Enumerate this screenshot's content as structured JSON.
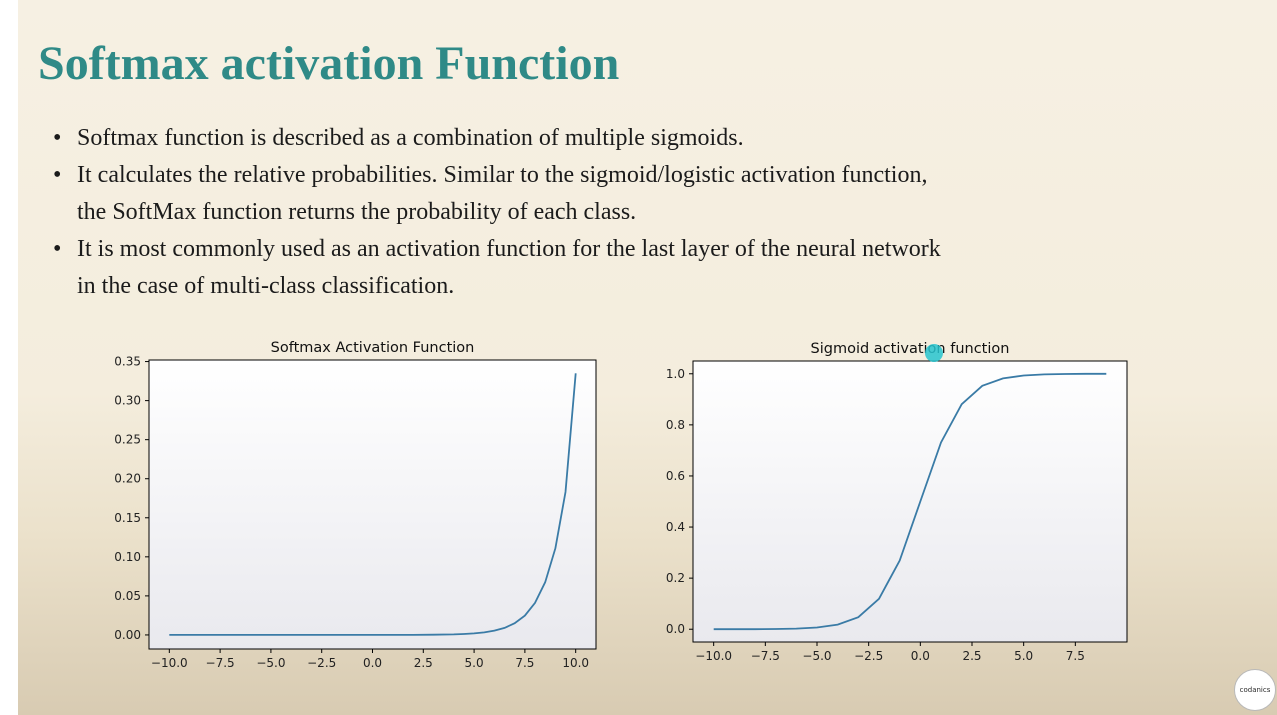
{
  "slide": {
    "title": "Softmax activation Function",
    "bullets": [
      "Softmax function is described as a combination of multiple sigmoids.",
      "It calculates the relative probabilities. Similar to the sigmoid/logistic activation function, the SoftMax function returns the probability of each class.",
      "It is most commonly used as an activation function for the last layer of the neural network in the case of multi-class classification."
    ],
    "title_color": "#2f8a87",
    "line_color": "#3a7ba6",
    "logo_text": "codanics"
  },
  "chart_data": [
    {
      "type": "line",
      "title": "Softmax Activation Function",
      "xlabel": "",
      "ylabel": "",
      "xlim": [
        -11.0,
        11.0
      ],
      "ylim": [
        -0.018,
        0.352
      ],
      "xticks": [
        -10.0,
        -7.5,
        -5.0,
        -2.5,
        0.0,
        2.5,
        5.0,
        7.5,
        10.0
      ],
      "xtick_labels": [
        "−10.0",
        "−7.5",
        "−5.0",
        "−2.5",
        "0.0",
        "2.5",
        "5.0",
        "7.5",
        "10.0"
      ],
      "yticks": [
        0.0,
        0.05,
        0.1,
        0.15,
        0.2,
        0.25,
        0.3,
        0.35
      ],
      "ytick_labels": [
        "0.00",
        "0.05",
        "0.10",
        "0.15",
        "0.20",
        "0.25",
        "0.30",
        "0.35"
      ],
      "grid": false,
      "series": [
        {
          "x": [
            -10,
            -9,
            -8,
            -7,
            -6,
            -5,
            -4,
            -3,
            -2,
            -1,
            0,
            1,
            2,
            3,
            4,
            4.5,
            5,
            5.5,
            6,
            6.5,
            7,
            7.5,
            8,
            8.5,
            9,
            9.5,
            10
          ],
          "y": [
            0,
            0,
            0,
            0,
            0,
            0,
            0,
            0,
            0,
            0,
            0,
            0,
            0,
            0.0003,
            0.0007,
            0.0012,
            0.002,
            0.0033,
            0.0055,
            0.009,
            0.015,
            0.0248,
            0.041,
            0.0675,
            0.111,
            0.183,
            0.335
          ]
        }
      ]
    },
    {
      "type": "line",
      "title": "Sigmoid activation function",
      "xlabel": "",
      "ylabel": "",
      "xlim": [
        -11.0,
        10.0
      ],
      "ylim": [
        -0.05,
        1.05
      ],
      "xticks": [
        -10.0,
        -7.5,
        -5.0,
        -2.5,
        0.0,
        2.5,
        5.0,
        7.5
      ],
      "xtick_labels": [
        "−10.0",
        "−7.5",
        "−5.0",
        "−2.5",
        "0.0",
        "2.5",
        "5.0",
        "7.5"
      ],
      "yticks": [
        0.0,
        0.2,
        0.4,
        0.6,
        0.8,
        1.0
      ],
      "ytick_labels": [
        "0.0",
        "0.2",
        "0.4",
        "0.6",
        "0.8",
        "1.0"
      ],
      "grid": false,
      "series": [
        {
          "x": [
            -10,
            -9,
            -8,
            -7,
            -6,
            -5,
            -4,
            -3,
            -2,
            -1,
            0,
            1,
            2,
            3,
            4,
            5,
            6,
            7,
            8,
            9
          ],
          "y": [
            0.0,
            0.0001,
            0.0003,
            0.0009,
            0.0025,
            0.0067,
            0.018,
            0.047,
            0.119,
            0.269,
            0.5,
            0.731,
            0.881,
            0.953,
            0.982,
            0.9933,
            0.9975,
            0.9991,
            0.9997,
            0.9999
          ]
        }
      ]
    }
  ]
}
